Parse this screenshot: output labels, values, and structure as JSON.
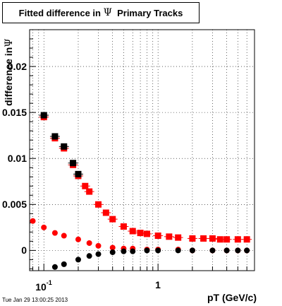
{
  "title": {
    "prefix": "Fitted difference in ",
    "symbol": "Ψ",
    "suffix": "  Primary Tracks"
  },
  "ylabel": {
    "prefix": "difference in",
    "symbol": "Ψ"
  },
  "xlabel": "pT (GeV/c)",
  "timestamp": "Tue Jan 29 13:00:25 2013",
  "colors": {
    "red": "#ff0000",
    "black": "#000000",
    "grid": "#000000"
  },
  "chart_data": {
    "type": "scatter",
    "title": "Fitted difference in Ψ  Primary Tracks",
    "xlabel": "pT (GeV/c)",
    "ylabel": "difference in Ψ",
    "xscale": "log",
    "xlim": [
      0.075,
      7.0
    ],
    "ylim": [
      -0.0022,
      0.024
    ],
    "grid": true,
    "yticks": [
      {
        "value": 0,
        "label": "0"
      },
      {
        "value": 0.005,
        "label": "0.005"
      },
      {
        "value": 0.01,
        "label": "0.01"
      },
      {
        "value": 0.015,
        "label": "0.015"
      },
      {
        "value": 0.02,
        "label": "0.02"
      }
    ],
    "xticks": [
      {
        "value": 0.1,
        "label_base": "10",
        "label_exp": "-1"
      },
      {
        "value": 1,
        "label_base": "1",
        "label_exp": ""
      }
    ],
    "series": [
      {
        "color": "#ff0000",
        "marker": "square",
        "x": [
          0.1,
          0.125,
          0.15,
          0.18,
          0.2,
          0.23,
          0.25,
          0.3,
          0.35,
          0.4,
          0.5,
          0.6,
          0.7,
          0.8,
          1.0,
          1.25,
          1.5,
          2.0,
          2.5,
          3.0,
          3.5,
          4.0,
          5.0,
          6.0
        ],
        "y": [
          0.0145,
          0.0122,
          0.0111,
          0.0093,
          0.0081,
          0.007,
          0.0064,
          0.005,
          0.0041,
          0.0034,
          0.0026,
          0.0021,
          0.0019,
          0.0018,
          0.0016,
          0.0015,
          0.0014,
          0.0013,
          0.0013,
          0.0013,
          0.0012,
          0.0012,
          0.0012,
          0.0012
        ]
      },
      {
        "color": "#000000",
        "marker": "square",
        "x": [
          0.1,
          0.125,
          0.15,
          0.18,
          0.2
        ],
        "y": [
          0.0147,
          0.0124,
          0.0113,
          0.0095,
          0.0083
        ]
      },
      {
        "color": "#ff0000",
        "marker": "circle",
        "x": [
          0.08,
          0.1,
          0.125,
          0.15,
          0.2,
          0.25,
          0.3,
          0.4,
          0.5,
          0.6,
          0.8,
          1.0,
          1.5,
          2.0,
          3.0,
          4.0,
          5.0,
          6.0
        ],
        "y": [
          0.0032,
          0.0025,
          0.0019,
          0.0016,
          0.0012,
          0.0008,
          0.0005,
          0.0003,
          0.0002,
          0.0002,
          0.0001,
          0.0001,
          0.0001,
          0.0,
          0.0,
          0.0,
          0.0,
          0.0
        ]
      },
      {
        "color": "#000000",
        "marker": "circle",
        "x": [
          0.125,
          0.15,
          0.2,
          0.25,
          0.3,
          0.4,
          0.5,
          0.6,
          0.8,
          1.0,
          1.5,
          2.0,
          3.0,
          4.0,
          5.0,
          6.0
        ],
        "y": [
          -0.0018,
          -0.0015,
          -0.001,
          -0.0006,
          -0.0004,
          -0.0002,
          -0.0001,
          -0.0001,
          0.0,
          0.0,
          0.0,
          0.0,
          0.0,
          0.0,
          0.0,
          0.0
        ]
      }
    ]
  }
}
